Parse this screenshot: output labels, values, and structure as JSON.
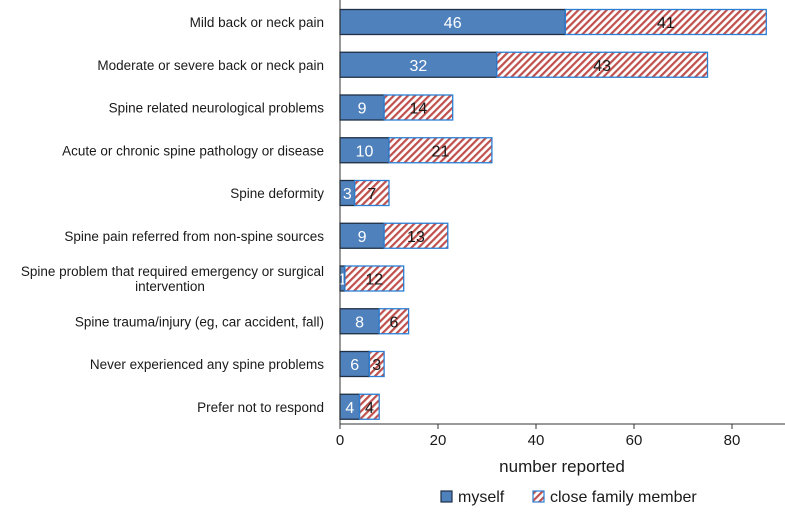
{
  "chart_data": {
    "type": "bar",
    "orientation": "horizontal",
    "stacked": true,
    "categories": [
      [
        "Mild back or neck pain"
      ],
      [
        "Moderate or severe back or neck pain"
      ],
      [
        "Spine related neurological problems"
      ],
      [
        "Acute or chronic spine pathology or disease"
      ],
      [
        "Spine deformity"
      ],
      [
        "Spine pain referred from non-spine sources"
      ],
      [
        "Spine problem that required emergency or surgical",
        "intervention"
      ],
      [
        "Spine trauma/injury (eg, car accident, fall)"
      ],
      [
        "Never experienced any spine problems"
      ],
      [
        "Prefer not to respond"
      ]
    ],
    "series": [
      {
        "name": "myself",
        "color": "#4f81bd",
        "pattern": "solid",
        "values": [
          46,
          32,
          9,
          10,
          3,
          9,
          1,
          8,
          6,
          4
        ]
      },
      {
        "name": "close family member",
        "color": "#c0504d",
        "pattern": "diagonal-hatch",
        "values": [
          41,
          43,
          14,
          21,
          7,
          13,
          12,
          6,
          3,
          4
        ]
      }
    ],
    "xlabel": "number reported",
    "ylabel": "",
    "xlim": [
      0,
      90
    ],
    "xticks": [
      0,
      20,
      40,
      60,
      80
    ],
    "legend": "bottom",
    "grid": false
  }
}
